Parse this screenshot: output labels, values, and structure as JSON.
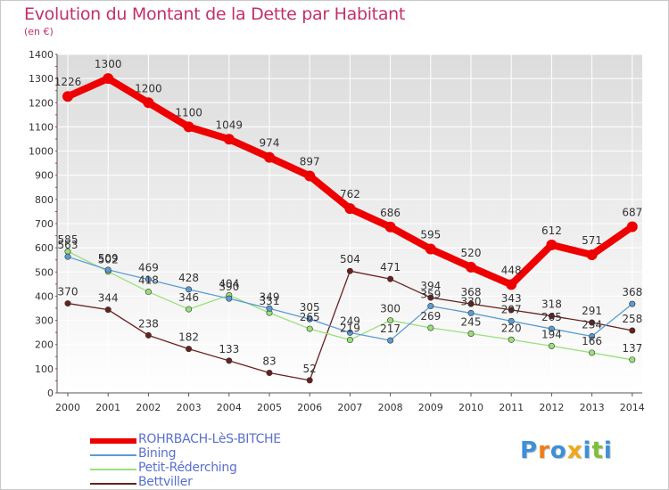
{
  "title": "Evolution du Montant de la Dette par Habitant",
  "subtitle": "(en €)",
  "chart_data": {
    "type": "line",
    "title": "Evolution du Montant de la Dette par Habitant",
    "subtitle": "(en €)",
    "xlabel": "",
    "ylabel": "",
    "x": [
      "2000",
      "2001",
      "2002",
      "2003",
      "2004",
      "2005",
      "2006",
      "2007",
      "2008",
      "2009",
      "2010",
      "2011",
      "2012",
      "2013",
      "2014"
    ],
    "ylim": [
      0,
      1400
    ],
    "yticks": [
      0,
      100,
      200,
      300,
      400,
      500,
      600,
      700,
      800,
      900,
      1000,
      1100,
      1200,
      1300,
      1400
    ],
    "grid": true,
    "legend_placement": "bottom-left",
    "series": [
      {
        "name": "ROHRBACH-LèS-BITCHE",
        "color": "#ee0000",
        "values": [
          1226,
          1300,
          1200,
          1100,
          1049,
          974,
          897,
          762,
          686,
          595,
          520,
          448,
          612,
          571,
          687
        ]
      },
      {
        "name": "Bining",
        "color": "#5b9bd5",
        "values": [
          563,
          509,
          469,
          428,
          390,
          349,
          305,
          249,
          217,
          359,
          330,
          297,
          265,
          234,
          368
        ]
      },
      {
        "name": "Petit-Réderching",
        "color": "#99e07a",
        "values": [
          585,
          502,
          418,
          346,
          404,
          331,
          265,
          219,
          300,
          269,
          245,
          220,
          194,
          166,
          137
        ]
      },
      {
        "name": "Bettviller",
        "color": "#6b1f1f",
        "values": [
          370,
          344,
          238,
          182,
          133,
          83,
          52,
          504,
          471,
          394,
          368,
          343,
          318,
          291,
          258
        ]
      }
    ]
  },
  "logo": {
    "letters": [
      "P",
      "r",
      "o",
      "x",
      "i",
      "t",
      "i"
    ],
    "colors": [
      "#3d8fd8",
      "#f07d1a",
      "#3d8fd8",
      "#f0a81a",
      "#3d8fd8",
      "#7cbf3a",
      "#3d8fd8"
    ]
  }
}
